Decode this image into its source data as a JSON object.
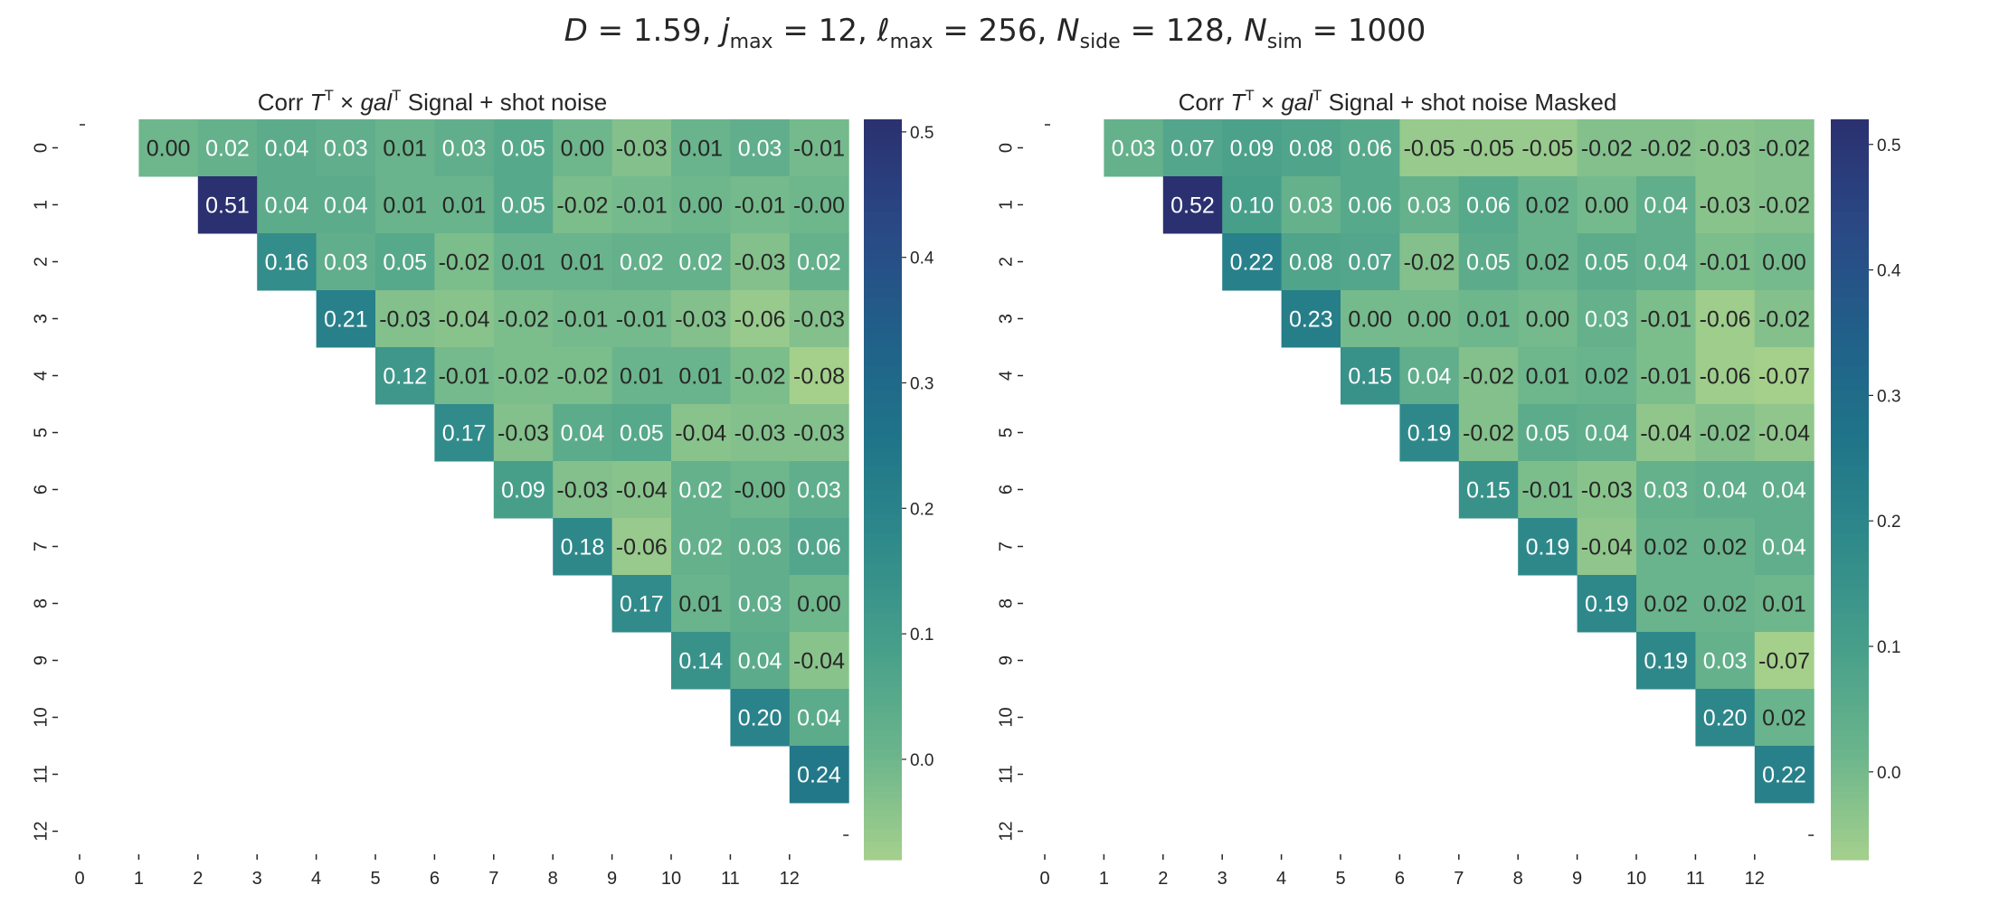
{
  "figure": {
    "suptitle_parts": {
      "D": "D",
      "D_val": " = 1.59,  ",
      "j": "j",
      "j_sub": "max",
      "j_val": " = 12,  ",
      "l": "ℓ",
      "l_sub": "max",
      "l_val": " = 256,  ",
      "N1": "N",
      "N1_sub": "side",
      "N1_val": " = 128,  ",
      "N2": "N",
      "N2_sub": "sim",
      "N2_val": " = 1000"
    }
  },
  "chart_data": [
    {
      "type": "heatmap",
      "title_prefix": "Corr ",
      "title_math": "T",
      "title_sup1": "T",
      "title_times": " × ",
      "title_math2": "gal",
      "title_sup2": "T",
      "title_suffix": " Signal + shot noise",
      "x_ticks": [
        "0",
        "1",
        "2",
        "3",
        "4",
        "5",
        "6",
        "7",
        "8",
        "9",
        "10",
        "11",
        "12"
      ],
      "y_ticks": [
        "0",
        "1",
        "2",
        "3",
        "4",
        "5",
        "6",
        "7",
        "8",
        "9",
        "10",
        "11",
        "12"
      ],
      "cells": [
        [
          "",
          "0.00",
          "0.02",
          "0.04",
          "0.03",
          "0.01",
          "0.03",
          "0.05",
          "0.00",
          "-0.03",
          "0.01",
          "0.03",
          "-0.01"
        ],
        [
          "",
          "",
          "0.51",
          "0.04",
          "0.04",
          "0.01",
          "0.01",
          "0.05",
          "-0.02",
          "-0.01",
          "0.00",
          "-0.01",
          "-0.00"
        ],
        [
          "",
          "",
          "",
          "0.16",
          "0.03",
          "0.05",
          "-0.02",
          "0.01",
          "0.01",
          "0.02",
          "0.02",
          "-0.03",
          "0.02"
        ],
        [
          "",
          "",
          "",
          "",
          "0.21",
          "-0.03",
          "-0.04",
          "-0.02",
          "-0.01",
          "-0.01",
          "-0.03",
          "-0.06",
          "-0.03"
        ],
        [
          "",
          "",
          "",
          "",
          "",
          "0.12",
          "-0.01",
          "-0.02",
          "-0.02",
          "0.01",
          "0.01",
          "-0.02",
          "-0.08"
        ],
        [
          "",
          "",
          "",
          "",
          "",
          "",
          "0.17",
          "-0.03",
          "0.04",
          "0.05",
          "-0.04",
          "-0.03",
          "-0.03"
        ],
        [
          "",
          "",
          "",
          "",
          "",
          "",
          "",
          "0.09",
          "-0.03",
          "-0.04",
          "0.02",
          "-0.00",
          "0.03"
        ],
        [
          "",
          "",
          "",
          "",
          "",
          "",
          "",
          "",
          "0.18",
          "-0.06",
          "0.02",
          "0.03",
          "0.06"
        ],
        [
          "",
          "",
          "",
          "",
          "",
          "",
          "",
          "",
          "",
          "0.17",
          "0.01",
          "0.03",
          "0.00"
        ],
        [
          "",
          "",
          "",
          "",
          "",
          "",
          "",
          "",
          "",
          "",
          "0.14",
          "0.04",
          "-0.04"
        ],
        [
          "",
          "",
          "",
          "",
          "",
          "",
          "",
          "",
          "",
          "",
          "",
          "0.20",
          "0.04"
        ],
        [
          "",
          "",
          "",
          "",
          "",
          "",
          "",
          "",
          "",
          "",
          "",
          "",
          "0.24"
        ],
        [
          "",
          "",
          "",
          "",
          "",
          "",
          "",
          "",
          "",
          "",
          "",
          "",
          ""
        ]
      ],
      "vmin": -0.08,
      "vmax": 0.51,
      "colorbar_ticks": [
        "0.0",
        "0.1",
        "0.2",
        "0.3",
        "0.4",
        "0.5"
      ],
      "colormap": [
        "#a5d08c",
        "#6bb58c",
        "#479f8a",
        "#2f8a8a",
        "#1f7489",
        "#215f89",
        "#2a4885",
        "#2b3070"
      ]
    },
    {
      "type": "heatmap",
      "title_prefix": "Corr ",
      "title_math": "T",
      "title_sup1": "T",
      "title_times": " × ",
      "title_math2": "gal",
      "title_sup2": "T",
      "title_suffix": " Signal + shot noise Masked",
      "x_ticks": [
        "0",
        "1",
        "2",
        "3",
        "4",
        "5",
        "6",
        "7",
        "8",
        "9",
        "10",
        "11",
        "12"
      ],
      "y_ticks": [
        "0",
        "1",
        "2",
        "3",
        "4",
        "5",
        "6",
        "7",
        "8",
        "9",
        "10",
        "11",
        "12"
      ],
      "cells": [
        [
          "",
          "0.03",
          "0.07",
          "0.09",
          "0.08",
          "0.06",
          "-0.05",
          "-0.05",
          "-0.05",
          "-0.02",
          "-0.02",
          "-0.03",
          "-0.02"
        ],
        [
          "",
          "",
          "0.52",
          "0.10",
          "0.03",
          "0.06",
          "0.03",
          "0.06",
          "0.02",
          "0.00",
          "0.04",
          "-0.03",
          "-0.02"
        ],
        [
          "",
          "",
          "",
          "0.22",
          "0.08",
          "0.07",
          "-0.02",
          "0.05",
          "0.02",
          "0.05",
          "0.04",
          "-0.01",
          "0.00"
        ],
        [
          "",
          "",
          "",
          "",
          "0.23",
          "0.00",
          "0.00",
          "0.01",
          "0.00",
          "0.03",
          "-0.01",
          "-0.06",
          "-0.02"
        ],
        [
          "",
          "",
          "",
          "",
          "",
          "0.15",
          "0.04",
          "-0.02",
          "0.01",
          "0.02",
          "-0.01",
          "-0.06",
          "-0.07"
        ],
        [
          "",
          "",
          "",
          "",
          "",
          "",
          "0.19",
          "-0.02",
          "0.05",
          "0.04",
          "-0.04",
          "-0.02",
          "-0.04"
        ],
        [
          "",
          "",
          "",
          "",
          "",
          "",
          "",
          "0.15",
          "-0.01",
          "-0.03",
          "0.03",
          "0.04",
          "0.04"
        ],
        [
          "",
          "",
          "",
          "",
          "",
          "",
          "",
          "",
          "0.19",
          "-0.04",
          "0.02",
          "0.02",
          "0.04"
        ],
        [
          "",
          "",
          "",
          "",
          "",
          "",
          "",
          "",
          "",
          "0.19",
          "0.02",
          "0.02",
          "0.01"
        ],
        [
          "",
          "",
          "",
          "",
          "",
          "",
          "",
          "",
          "",
          "",
          "0.19",
          "0.03",
          "-0.07"
        ],
        [
          "",
          "",
          "",
          "",
          "",
          "",
          "",
          "",
          "",
          "",
          "",
          "0.20",
          "0.02"
        ],
        [
          "",
          "",
          "",
          "",
          "",
          "",
          "",
          "",
          "",
          "",
          "",
          "",
          "0.22"
        ],
        [
          "",
          "",
          "",
          "",
          "",
          "",
          "",
          "",
          "",
          "",
          "",
          "",
          ""
        ]
      ],
      "vmin": -0.07,
      "vmax": 0.52,
      "colorbar_ticks": [
        "0.0",
        "0.1",
        "0.2",
        "0.3",
        "0.4",
        "0.5"
      ],
      "colormap": [
        "#a5d08c",
        "#6bb58c",
        "#479f8a",
        "#2f8a8a",
        "#1f7489",
        "#215f89",
        "#2a4885",
        "#2b3070"
      ]
    }
  ]
}
